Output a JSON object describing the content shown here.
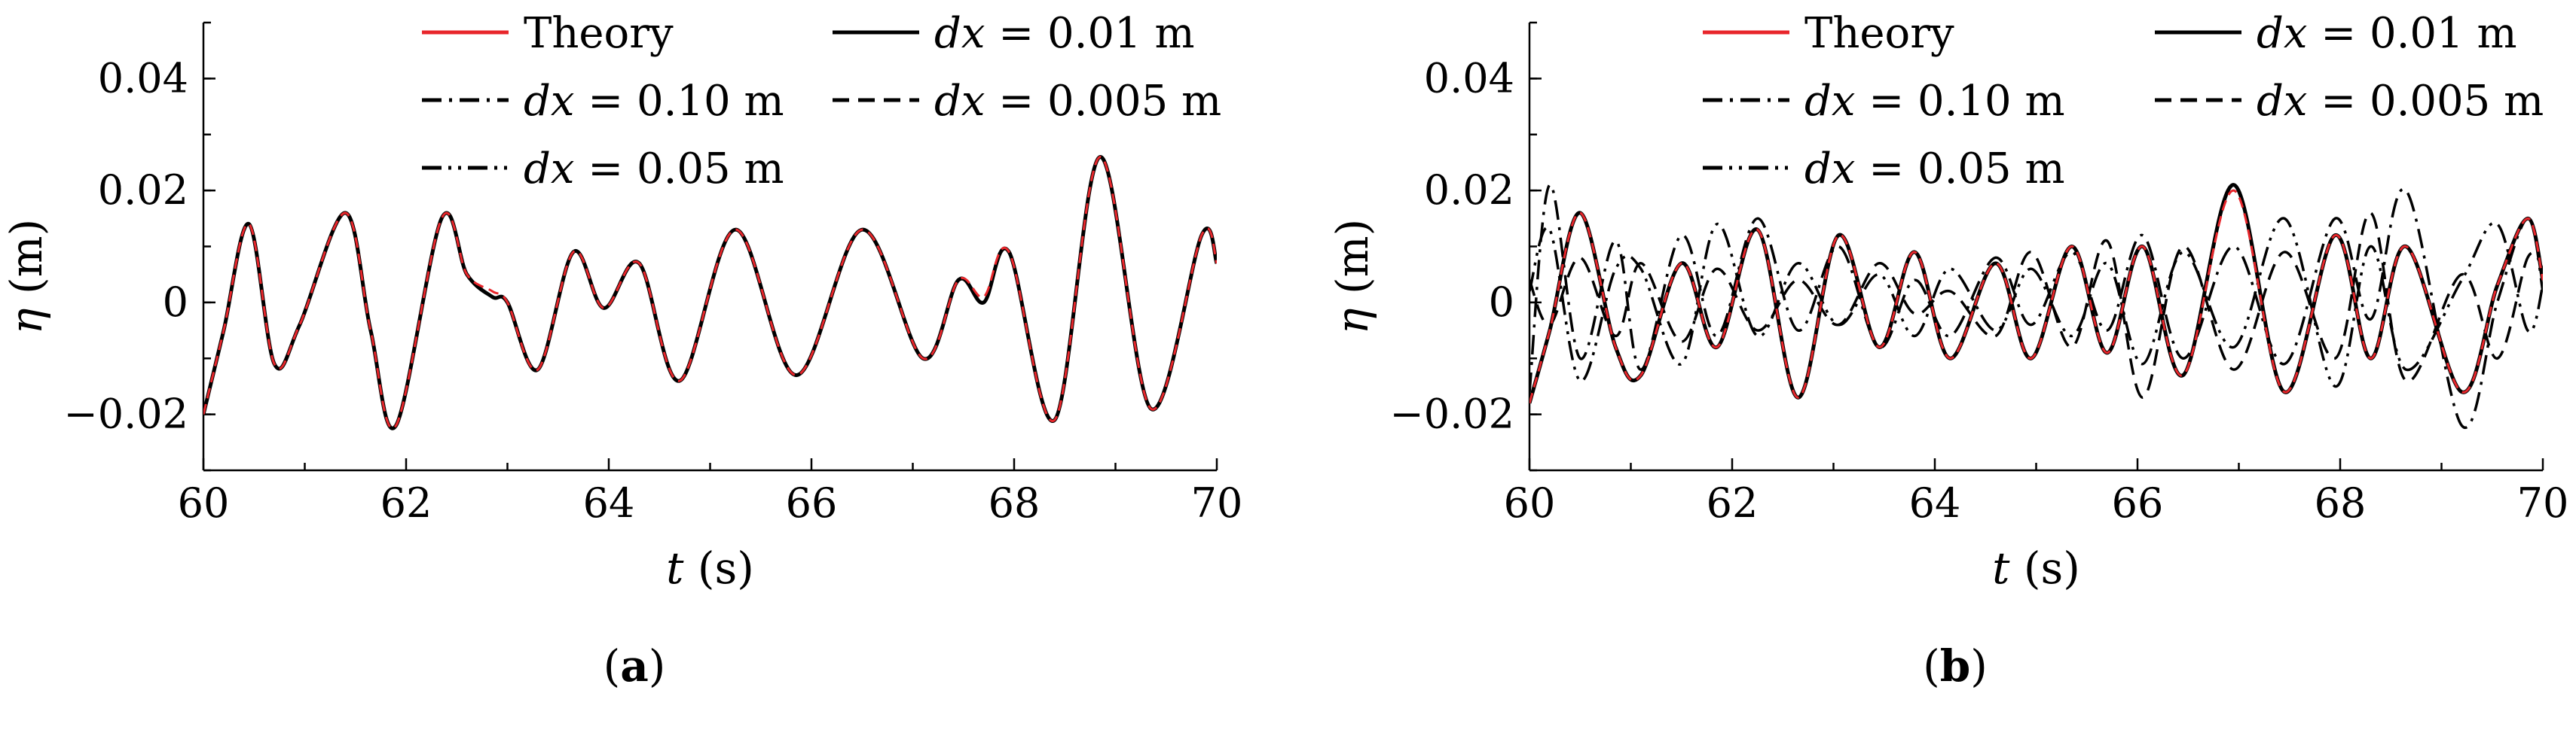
{
  "chart_data": [
    {
      "type": "line",
      "panel_label": "a",
      "xlabel_var": "t",
      "xlabel_unit": "(s)",
      "ylabel_var": "η",
      "ylabel_unit": "(m)",
      "xlim": [
        60,
        70
      ],
      "ylim": [
        -0.03,
        0.05
      ],
      "xticks": [
        60,
        62,
        64,
        66,
        68,
        70
      ],
      "xtick_labels": [
        "60",
        "62",
        "64",
        "66",
        "68",
        "70"
      ],
      "yticks": [
        -0.02,
        0,
        0.02,
        0.04
      ],
      "ytick_labels": [
        "−0.02",
        "0",
        "0.02",
        "0.04"
      ],
      "legend_position": "top",
      "series": [
        {
          "name": "Theory",
          "color": "#e8262b",
          "style": "solid"
        },
        {
          "name": "dx = 0.01 m",
          "color": "#000000",
          "style": "solid"
        },
        {
          "name": "dx = 0.10 m",
          "color": "#000000",
          "style": "dashdot"
        },
        {
          "name": "dx = 0.005 m",
          "color": "#000000",
          "style": "dashed"
        },
        {
          "name": "dx = 0.05 m",
          "color": "#000000",
          "style": "dashdotdot"
        }
      ],
      "x": [
        60.0,
        60.2,
        60.45,
        60.7,
        60.95,
        61.4,
        61.65,
        61.9,
        62.35,
        62.6,
        62.85,
        63.0,
        63.3,
        63.65,
        63.95,
        64.3,
        64.7,
        65.25,
        65.85,
        66.5,
        67.1,
        67.45,
        67.7,
        67.95,
        68.4,
        68.85,
        69.35,
        69.85,
        70.0
      ],
      "series_values": {
        "Theory": [
          -0.02,
          -0.005,
          0.014,
          -0.011,
          -0.004,
          0.016,
          -0.005,
          -0.022,
          0.015,
          0.005,
          0.002,
          0.0,
          -0.012,
          0.009,
          -0.001,
          0.007,
          -0.014,
          0.013,
          -0.013,
          0.013,
          -0.01,
          0.004,
          0.001,
          0.009,
          -0.021,
          0.026,
          -0.019,
          0.012,
          0.007
        ],
        "dx = 0.01 m": [
          -0.02,
          -0.005,
          0.014,
          -0.011,
          -0.004,
          0.016,
          -0.005,
          -0.022,
          0.015,
          0.005,
          0.001,
          0.0,
          -0.012,
          0.009,
          -0.001,
          0.007,
          -0.014,
          0.013,
          -0.013,
          0.013,
          -0.01,
          0.004,
          0.0,
          0.009,
          -0.021,
          0.026,
          -0.019,
          0.012,
          0.007
        ],
        "dx = 0.10 m": [
          -0.02,
          -0.005,
          0.014,
          -0.011,
          -0.004,
          0.016,
          -0.005,
          -0.022,
          0.015,
          0.005,
          0.001,
          0.0,
          -0.012,
          0.009,
          -0.001,
          0.007,
          -0.014,
          0.013,
          -0.013,
          0.013,
          -0.01,
          0.004,
          0.0,
          0.009,
          -0.021,
          0.026,
          -0.019,
          0.012,
          0.007
        ],
        "dx = 0.005 m": [
          -0.02,
          -0.005,
          0.014,
          -0.011,
          -0.004,
          0.016,
          -0.005,
          -0.022,
          0.015,
          0.005,
          0.001,
          0.0,
          -0.012,
          0.009,
          -0.001,
          0.007,
          -0.014,
          0.013,
          -0.013,
          0.013,
          -0.01,
          0.004,
          0.0,
          0.009,
          -0.021,
          0.026,
          -0.019,
          0.012,
          0.007
        ],
        "dx = 0.05 m": [
          -0.02,
          -0.005,
          0.014,
          -0.011,
          -0.004,
          0.016,
          -0.005,
          -0.022,
          0.015,
          0.005,
          0.001,
          0.0,
          -0.012,
          0.009,
          -0.001,
          0.007,
          -0.014,
          0.013,
          -0.013,
          0.013,
          -0.01,
          0.004,
          0.0,
          0.009,
          -0.021,
          0.026,
          -0.019,
          0.012,
          0.007
        ]
      }
    },
    {
      "type": "line",
      "panel_label": "b",
      "xlabel_var": "t",
      "xlabel_unit": "(s)",
      "ylabel_var": "η",
      "ylabel_unit": "(m)",
      "xlim": [
        60,
        70
      ],
      "ylim": [
        -0.03,
        0.05
      ],
      "xticks": [
        60,
        62,
        64,
        66,
        68,
        70
      ],
      "xtick_labels": [
        "60",
        "62",
        "64",
        "66",
        "68",
        "70"
      ],
      "yticks": [
        -0.02,
        0,
        0.02,
        0.04
      ],
      "ytick_labels": [
        "−0.02",
        "0",
        "0.02",
        "0.04"
      ],
      "legend_position": "top",
      "series": [
        {
          "name": "Theory",
          "color": "#e8262b",
          "style": "solid"
        },
        {
          "name": "dx = 0.01 m",
          "color": "#000000",
          "style": "solid"
        },
        {
          "name": "dx = 0.10 m",
          "color": "#000000",
          "style": "dashdot"
        },
        {
          "name": "dx = 0.005 m",
          "color": "#000000",
          "style": "dashed"
        },
        {
          "name": "dx = 0.05 m",
          "color": "#000000",
          "style": "dashdotdot"
        }
      ],
      "x": [
        60.0,
        60.2,
        60.5,
        60.85,
        61.1,
        61.5,
        61.85,
        62.25,
        62.65,
        63.05,
        63.45,
        63.8,
        64.15,
        64.6,
        64.95,
        65.35,
        65.7,
        66.05,
        66.45,
        66.95,
        67.45,
        67.95,
        68.3,
        68.65,
        69.2,
        69.55,
        69.85,
        70.0
      ],
      "series_values": {
        "Theory": [
          -0.018,
          -0.005,
          0.016,
          -0.008,
          -0.013,
          0.007,
          -0.008,
          0.013,
          -0.017,
          0.012,
          -0.008,
          0.009,
          -0.01,
          0.007,
          -0.01,
          0.01,
          -0.009,
          0.01,
          -0.013,
          0.02,
          -0.016,
          0.012,
          -0.01,
          0.01,
          -0.016,
          0.003,
          0.015,
          0.004
        ],
        "dx = 0.01 m": [
          -0.018,
          -0.005,
          0.016,
          -0.008,
          -0.013,
          0.007,
          -0.008,
          0.013,
          -0.017,
          0.012,
          -0.008,
          0.009,
          -0.01,
          0.007,
          -0.01,
          0.01,
          -0.009,
          0.01,
          -0.013,
          0.021,
          -0.016,
          0.012,
          -0.01,
          0.01,
          -0.016,
          0.003,
          0.015,
          0.004
        ],
        "dx = 0.10 m": [
          -0.016,
          0.021,
          -0.01,
          0.011,
          -0.012,
          0.012,
          -0.006,
          0.015,
          -0.005,
          0.01,
          -0.008,
          0.004,
          -0.006,
          0.008,
          -0.004,
          0.009,
          -0.005,
          0.012,
          -0.01,
          0.01,
          -0.011,
          0.015,
          -0.003,
          0.02,
          -0.022,
          0.0,
          0.015,
          0.002
        ],
        "dx = 0.005 m": [
          0.004,
          -0.004,
          0.008,
          -0.006,
          0.007,
          -0.007,
          0.006,
          -0.005,
          0.004,
          -0.004,
          0.007,
          -0.002,
          0.002,
          -0.006,
          0.009,
          -0.008,
          0.011,
          -0.017,
          0.01,
          -0.012,
          0.009,
          -0.01,
          0.016,
          -0.014,
          0.005,
          -0.01,
          0.008,
          0.006
        ],
        "dx = 0.05 m": [
          0.002,
          0.013,
          -0.014,
          0.006,
          0.006,
          -0.011,
          0.014,
          -0.006,
          0.007,
          -0.004,
          0.005,
          -0.006,
          0.006,
          -0.005,
          0.006,
          -0.006,
          0.007,
          -0.011,
          0.009,
          -0.008,
          0.015,
          -0.015,
          0.01,
          -0.012,
          0.004,
          0.014,
          -0.005,
          0.003
        ]
      }
    }
  ]
}
